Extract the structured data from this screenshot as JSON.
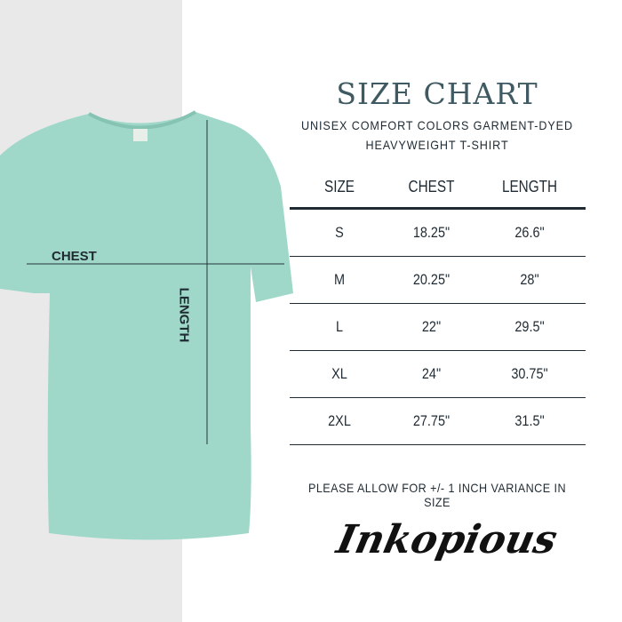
{
  "title": "SIZE CHART",
  "subtitle_line1": "UNISEX COMFORT COLORS GARMENT-DYED",
  "subtitle_line2": "HEAVYWEIGHT T-SHIRT",
  "shirt": {
    "color": "#9fd8c8",
    "chest_label": "CHEST",
    "length_label": "LENGTH"
  },
  "table": {
    "headers": [
      "SIZE",
      "CHEST",
      "LENGTH"
    ],
    "rows": [
      [
        "S",
        "18.25\"",
        "26.6\""
      ],
      [
        "M",
        "20.25\"",
        "28\""
      ],
      [
        "L",
        "22\"",
        "29.5\""
      ],
      [
        "XL",
        "24\"",
        "30.75\""
      ],
      [
        "2XL",
        "27.75\"",
        "31.5\""
      ]
    ]
  },
  "note": "PLEASE ALLOW FOR +/- 1 INCH VARIANCE IN SIZE",
  "brand": "Inkopious"
}
